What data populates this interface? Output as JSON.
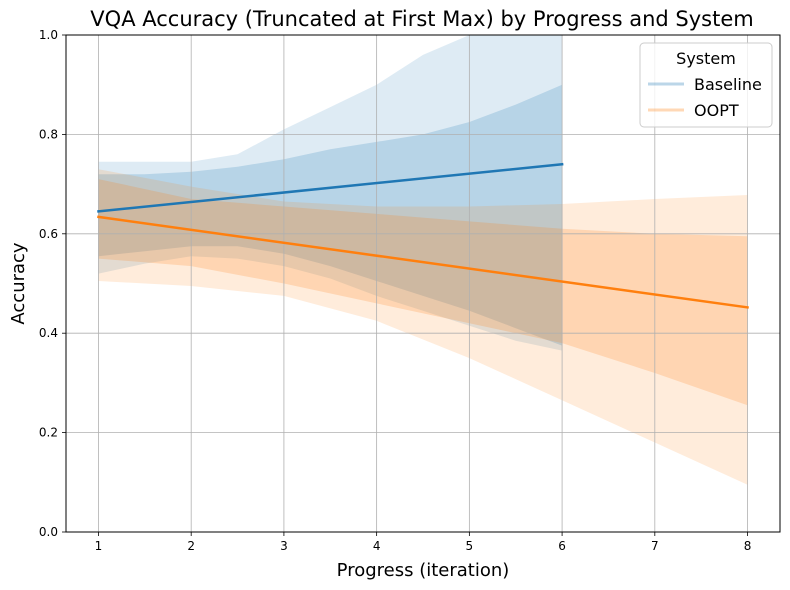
{
  "chart_data": {
    "type": "line",
    "title": "VQA Accuracy (Truncated at First Max) by Progress and System",
    "xlabel": "Progress (iteration)",
    "ylabel": "Accuracy",
    "xlim": [
      0.65,
      8.35
    ],
    "ylim": [
      0.0,
      1.0
    ],
    "xticks": [
      1,
      2,
      3,
      4,
      5,
      6,
      7,
      8
    ],
    "yticks": [
      0.0,
      0.2,
      0.4,
      0.6,
      0.8,
      1.0
    ],
    "xtick_labels": [
      "1",
      "2",
      "3",
      "4",
      "5",
      "6",
      "7",
      "8"
    ],
    "ytick_labels": [
      "0.0",
      "0.2",
      "0.4",
      "0.6",
      "0.8",
      "1.0"
    ],
    "grid": true,
    "legend": {
      "title": "System",
      "position": "top-right"
    },
    "series": [
      {
        "name": "Baseline",
        "color": "#1f77b4",
        "x": [
          1,
          6
        ],
        "y": [
          0.645,
          0.74
        ],
        "band_inner": {
          "x": [
            1,
            1.5,
            2,
            2.5,
            3,
            3.5,
            4,
            4.5,
            5,
            5.5,
            6
          ],
          "upper": [
            0.72,
            0.72,
            0.725,
            0.735,
            0.75,
            0.77,
            0.785,
            0.8,
            0.825,
            0.86,
            0.9
          ],
          "lower": [
            0.555,
            0.565,
            0.575,
            0.575,
            0.56,
            0.535,
            0.505,
            0.475,
            0.445,
            0.41,
            0.375
          ]
        },
        "band_outer": {
          "x": [
            1,
            1.5,
            2,
            2.5,
            3,
            3.5,
            4,
            4.5,
            5,
            5.5,
            6
          ],
          "upper": [
            0.745,
            0.745,
            0.745,
            0.76,
            0.81,
            0.855,
            0.9,
            0.96,
            1.03,
            1.1,
            1.18
          ],
          "lower": [
            0.52,
            0.54,
            0.555,
            0.55,
            0.535,
            0.51,
            0.475,
            0.445,
            0.415,
            0.385,
            0.365
          ]
        }
      },
      {
        "name": "OOPT",
        "color": "#ff7f0e",
        "x": [
          1,
          8
        ],
        "y": [
          0.634,
          0.452
        ],
        "band_inner": {
          "x": [
            1,
            2,
            3,
            4,
            5,
            6,
            7,
            8
          ],
          "upper": [
            0.71,
            0.67,
            0.655,
            0.64,
            0.625,
            0.61,
            0.6,
            0.595
          ],
          "lower": [
            0.55,
            0.535,
            0.5,
            0.46,
            0.42,
            0.38,
            0.32,
            0.255
          ]
        },
        "band_outer": {
          "x": [
            1,
            2,
            3,
            4,
            5,
            6,
            7,
            8
          ],
          "upper": [
            0.73,
            0.695,
            0.665,
            0.655,
            0.655,
            0.66,
            0.67,
            0.678
          ],
          "lower": [
            0.505,
            0.495,
            0.475,
            0.425,
            0.35,
            0.265,
            0.18,
            0.095
          ]
        }
      }
    ]
  }
}
